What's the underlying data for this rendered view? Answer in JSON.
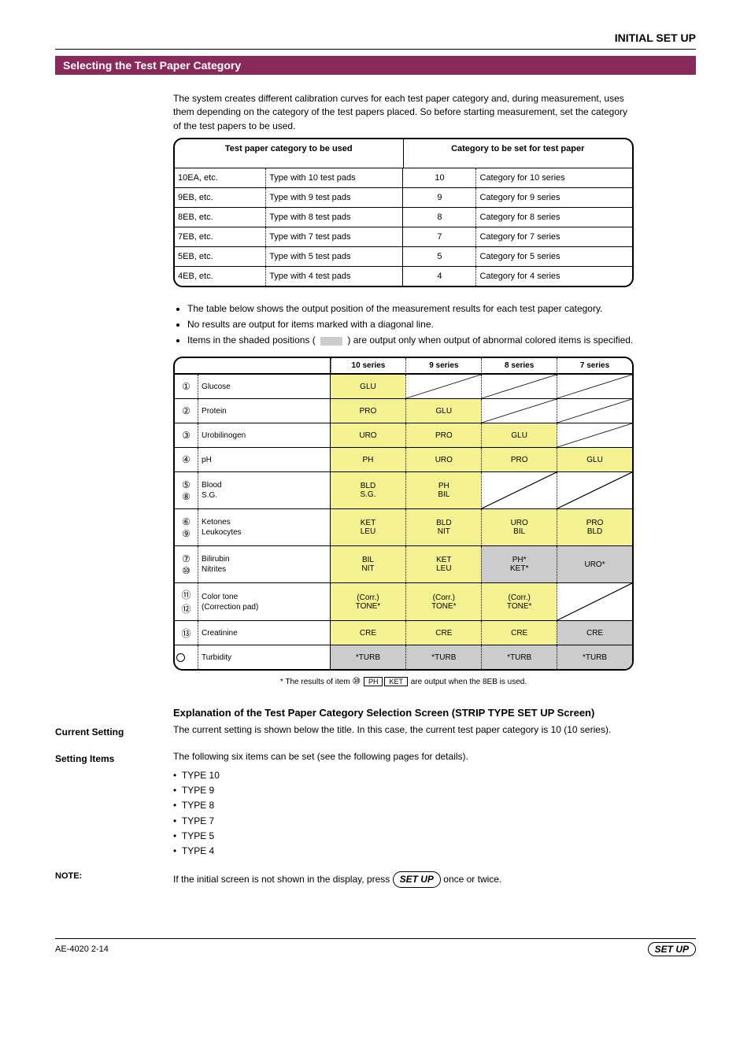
{
  "header_title": "INITIAL SET UP",
  "section_bar": "Selecting the Test Paper Category",
  "intro": "The system creates different calibration curves for each test paper category and, during measurement, uses them depending on the category of the test papers placed. So before starting measurement, set the category of the test papers to be used.",
  "table1": {
    "left_header": "Test paper category to be used",
    "right_header": "Category to be set for test paper",
    "rows": [
      {
        "c1": "10EA, etc.",
        "c2": "Type with 10 test pads",
        "c3": "10",
        "c4": "Category for 10 series"
      },
      {
        "c1": "9EB, etc.",
        "c2": "Type with 9 test pads",
        "c3": "9",
        "c4": "Category for 9 series"
      },
      {
        "c1": "8EB, etc.",
        "c2": "Type with 8 test pads",
        "c3": "8",
        "c4": "Category for 8 series"
      },
      {
        "c1": "7EB, etc.",
        "c2": "Type with 7 test pads",
        "c3": "7",
        "c4": "Category for 7 series"
      },
      {
        "c1": "5EB, etc.",
        "c2": "Type with 5 test pads",
        "c3": "5",
        "c4": "Category for 5 series"
      },
      {
        "c1": "4EB, etc.",
        "c2": "Type with 4 test pads",
        "c3": "4",
        "c4": "Category for 4 series"
      }
    ]
  },
  "bullets": [
    "The table below shows the output position of the measurement results for each test paper category.",
    "No results are output for items marked with a diagonal line.",
    "Items in the shaded positions (         ) are output only when output of abnormal colored items is specified."
  ],
  "table2": {
    "headers": [
      "",
      "10 series",
      "9 series",
      "8 series",
      "7 series"
    ],
    "rows": [
      {
        "nums": [
          "①"
        ],
        "label": "Glucose",
        "cells": [
          {
            "t": "GLU",
            "c": "yellow"
          },
          {
            "d": true
          },
          {
            "d": true
          },
          {
            "d": true
          }
        ]
      },
      {
        "nums": [
          "②"
        ],
        "label": "Protein",
        "cells": [
          {
            "t": "PRO",
            "c": "yellow"
          },
          {
            "t": "GLU",
            "c": "yellow"
          },
          {
            "d": true
          },
          {
            "d": true
          }
        ]
      },
      {
        "nums": [
          "③"
        ],
        "label": "Urobilinogen",
        "cells": [
          {
            "t": "URO",
            "c": "yellow"
          },
          {
            "t": "PRO",
            "c": "yellow"
          },
          {
            "t": "GLU",
            "c": "yellow"
          },
          {
            "d": true
          }
        ]
      },
      {
        "nums": [
          "④"
        ],
        "label": "pH",
        "cells": [
          {
            "t": "PH",
            "c": "yellow"
          },
          {
            "t": "URO",
            "c": "yellow"
          },
          {
            "t": "PRO",
            "c": "yellow"
          },
          {
            "t": "GLU",
            "c": "yellow"
          }
        ]
      },
      {
        "nums": [
          "⑤",
          "⑧"
        ],
        "label": "Blood\nS.G.",
        "cells": [
          {
            "t": "BLD\nS.G.",
            "c": "yellow"
          },
          {
            "t": "PH\nBIL",
            "c": "yellow"
          },
          {
            "d": true
          },
          {
            "d": true
          }
        ]
      },
      {
        "nums": [
          "⑥",
          "⑨"
        ],
        "label": "Ketones\nLeukocytes",
        "cells": [
          {
            "t": "KET\nLEU",
            "c": "yellow"
          },
          {
            "t": "BLD\nNIT",
            "c": "yellow"
          },
          {
            "t": "URO\nBIL",
            "c": "yellow"
          },
          {
            "t": "PRO\nBLD",
            "c": "yellow"
          }
        ]
      },
      {
        "nums": [
          "⑦",
          "⑩"
        ],
        "label": "Bilirubin\nNitrites",
        "cells": [
          {
            "t": "BIL\nNIT",
            "c": "yellow"
          },
          {
            "t": "KET\nLEU",
            "c": "yellow"
          },
          {
            "t": "PH*\nKET*",
            "c": "grey"
          },
          {
            "t": "URO*",
            "c": "grey"
          }
        ]
      },
      {
        "nums": [
          "⑪",
          "⑫"
        ],
        "label": "Color tone\n(Correction pad)",
        "cells": [
          {
            "t": "(Corr.)\nTONE*",
            "c": "yellow"
          },
          {
            "t": "(Corr.)\nTONE*",
            "c": "yellow"
          },
          {
            "t": "(Corr.)\nTONE*",
            "c": "yellow"
          },
          {
            "d": true
          }
        ]
      },
      {
        "nums": [
          "⑬"
        ],
        "label": "Creatinine",
        "cells": [
          {
            "t": "CRE",
            "c": "yellow"
          },
          {
            "t": "CRE",
            "c": "yellow"
          },
          {
            "t": "CRE",
            "c": "yellow"
          },
          {
            "t": "CRE",
            "c": "grey"
          }
        ]
      },
      {
        "nums": [
          "○"
        ],
        "label": "Turbidity",
        "cells": [
          {
            "t": "*TURB",
            "c": "grey"
          },
          {
            "t": "*TURB",
            "c": "grey"
          },
          {
            "t": "*TURB",
            "c": "grey"
          },
          {
            "t": "*TURB",
            "c": "grey"
          }
        ]
      }
    ],
    "footnote_pre": "* The results of item ",
    "footnote_num": "⑩",
    "footnote_boxes": [
      "PH",
      "KET"
    ],
    "footnote_post": " are output when the 8EB is used."
  },
  "explain_title": "Explanation of the Test Paper Category Selection Screen (STRIP TYPE SET UP Screen)",
  "current_label": "Current Setting",
  "current_text": "The current setting is shown below the title. In this case, the current test paper category is 10 (10 series).",
  "setting_label": "Setting Items",
  "setting_items_intro": "The following six items can be set (see the following pages for details).",
  "setting_items": [
    "TYPE 10",
    "TYPE 9",
    "TYPE 8",
    "TYPE 7",
    "TYPE 5",
    "TYPE 4"
  ],
  "note_label": "NOTE:",
  "note_text": "If the initial screen is not shown in the display, press ",
  "note_button": "SET UP",
  "note_text2": " once or twice.",
  "footer_left": "AE-4020  2-14",
  "footer_right": "SET UP"
}
